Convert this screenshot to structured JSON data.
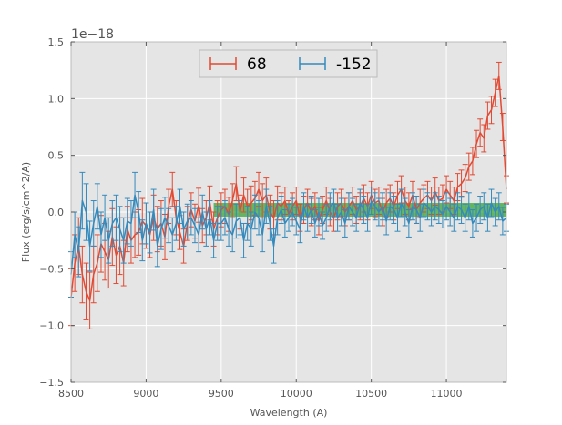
{
  "chart_data": {
    "type": "line",
    "xlabel": "Wavelength (A)",
    "ylabel": "Flux (erg/s/cm^2/A)",
    "y_offset_label": "1e−18",
    "xlim": [
      8500,
      11400
    ],
    "ylim": [
      -1.5,
      1.5
    ],
    "x_ticks": [
      8500,
      9000,
      9500,
      10000,
      10500,
      11000
    ],
    "x_tick_labels": [
      "8500",
      "9000",
      "9500",
      "10000",
      "10500",
      "11000"
    ],
    "y_ticks": [
      -1.5,
      -1.0,
      -0.5,
      0.0,
      0.5,
      1.0,
      1.5
    ],
    "y_tick_labels": [
      "−1.5",
      "−1.0",
      "−0.5",
      "0.0",
      "0.5",
      "1.0",
      "1.5"
    ],
    "grid": true,
    "background": "#e5e5e5",
    "legend_position": "top-center",
    "x": [
      8500,
      8525,
      8550,
      8575,
      8600,
      8625,
      8650,
      8675,
      8700,
      8725,
      8750,
      8775,
      8800,
      8825,
      8850,
      8875,
      8900,
      8925,
      8950,
      8975,
      9000,
      9025,
      9050,
      9075,
      9100,
      9125,
      9150,
      9175,
      9200,
      9225,
      9250,
      9275,
      9300,
      9325,
      9350,
      9375,
      9400,
      9425,
      9450,
      9475,
      9500,
      9525,
      9550,
      9575,
      9600,
      9625,
      9650,
      9675,
      9700,
      9725,
      9750,
      9775,
      9800,
      9825,
      9850,
      9875,
      9900,
      9925,
      9950,
      9975,
      10000,
      10025,
      10050,
      10075,
      10100,
      10125,
      10150,
      10175,
      10200,
      10225,
      10250,
      10275,
      10300,
      10325,
      10350,
      10375,
      10400,
      10425,
      10450,
      10475,
      10500,
      10525,
      10550,
      10575,
      10600,
      10625,
      10650,
      10675,
      10700,
      10725,
      10750,
      10775,
      10800,
      10825,
      10850,
      10875,
      10900,
      10925,
      10950,
      10975,
      11000,
      11025,
      11050,
      11075,
      11100,
      11125,
      11150,
      11175,
      11200,
      11225,
      11250,
      11275,
      11300,
      11325,
      11350,
      11375,
      11400
    ],
    "series": [
      {
        "name": "68",
        "color": "#e24a33",
        "values": [
          -0.75,
          -0.45,
          -0.3,
          -0.55,
          -0.7,
          -0.78,
          -0.55,
          -0.45,
          -0.28,
          -0.35,
          -0.42,
          -0.22,
          -0.38,
          -0.3,
          -0.45,
          -0.15,
          -0.25,
          -0.2,
          -0.18,
          -0.08,
          -0.12,
          -0.2,
          -0.05,
          -0.15,
          -0.1,
          -0.22,
          0.05,
          0.2,
          -0.05,
          -0.18,
          -0.3,
          -0.1,
          0.02,
          -0.08,
          0.06,
          -0.12,
          -0.05,
          0.08,
          -0.15,
          -0.05,
          0.02,
          0.05,
          -0.02,
          0.1,
          0.25,
          0.0,
          0.15,
          0.05,
          0.08,
          0.12,
          0.2,
          0.1,
          0.15,
          0.0,
          -0.05,
          0.08,
          0.05,
          0.1,
          -0.02,
          0.05,
          0.1,
          -0.05,
          0.02,
          0.08,
          0.0,
          0.05,
          -0.08,
          0.02,
          0.1,
          0.0,
          -0.05,
          0.05,
          0.08,
          0.0,
          0.05,
          0.1,
          0.02,
          0.05,
          0.12,
          0.05,
          0.15,
          0.08,
          0.1,
          0.0,
          0.08,
          0.12,
          0.05,
          0.15,
          0.2,
          0.1,
          0.05,
          0.15,
          0.02,
          0.08,
          0.12,
          0.15,
          0.1,
          0.18,
          0.1,
          0.12,
          0.2,
          0.15,
          0.1,
          0.22,
          0.25,
          0.3,
          0.4,
          0.45,
          0.6,
          0.7,
          0.65,
          0.85,
          0.9,
          1.05,
          1.2,
          0.75,
          0.2
        ],
        "errors": [
          0.25,
          0.25,
          0.25,
          0.25,
          0.25,
          0.25,
          0.25,
          0.25,
          0.25,
          0.25,
          0.25,
          0.25,
          0.25,
          0.25,
          0.2,
          0.2,
          0.2,
          0.2,
          0.2,
          0.2,
          0.2,
          0.2,
          0.2,
          0.2,
          0.2,
          0.2,
          0.15,
          0.15,
          0.15,
          0.15,
          0.15,
          0.15,
          0.15,
          0.15,
          0.15,
          0.15,
          0.15,
          0.15,
          0.15,
          0.15,
          0.15,
          0.15,
          0.15,
          0.15,
          0.15,
          0.15,
          0.15,
          0.15,
          0.15,
          0.15,
          0.15,
          0.15,
          0.15,
          0.15,
          0.15,
          0.15,
          0.12,
          0.12,
          0.12,
          0.12,
          0.12,
          0.12,
          0.12,
          0.12,
          0.12,
          0.12,
          0.12,
          0.12,
          0.12,
          0.12,
          0.12,
          0.12,
          0.12,
          0.12,
          0.12,
          0.12,
          0.12,
          0.12,
          0.12,
          0.12,
          0.12,
          0.12,
          0.12,
          0.12,
          0.12,
          0.12,
          0.12,
          0.12,
          0.12,
          0.12,
          0.12,
          0.12,
          0.12,
          0.12,
          0.12,
          0.12,
          0.12,
          0.12,
          0.12,
          0.12,
          0.12,
          0.12,
          0.12,
          0.12,
          0.12,
          0.12,
          0.12,
          0.12,
          0.12,
          0.12,
          0.12,
          0.12,
          0.12,
          0.12,
          0.12,
          0.12,
          0.12
        ]
      },
      {
        "name": "-152",
        "color": "#348abd",
        "values": [
          -0.55,
          -0.2,
          -0.35,
          0.1,
          0.0,
          -0.3,
          -0.1,
          0.05,
          -0.2,
          -0.05,
          -0.25,
          -0.1,
          -0.05,
          -0.15,
          -0.25,
          -0.08,
          -0.1,
          0.15,
          0.0,
          -0.25,
          -0.1,
          -0.18,
          0.02,
          -0.3,
          -0.15,
          -0.05,
          -0.12,
          -0.2,
          -0.1,
          0.05,
          -0.15,
          -0.08,
          -0.05,
          -0.12,
          -0.2,
          0.0,
          -0.15,
          -0.05,
          -0.25,
          -0.1,
          -0.1,
          -0.05,
          -0.15,
          -0.2,
          -0.08,
          -0.05,
          -0.25,
          -0.1,
          -0.15,
          0.0,
          -0.05,
          -0.2,
          0.05,
          -0.1,
          -0.3,
          -0.05,
          0.02,
          -0.1,
          -0.05,
          0.0,
          -0.08,
          -0.15,
          0.05,
          -0.05,
          0.02,
          -0.1,
          0.0,
          -0.12,
          -0.05,
          0.05,
          0.08,
          -0.05,
          0.0,
          -0.1,
          0.05,
          0.0,
          -0.05,
          0.08,
          0.02,
          -0.05,
          0.1,
          0.05,
          0.0,
          0.05,
          -0.08,
          0.05,
          0.02,
          -0.05,
          0.08,
          0.0,
          -0.1,
          0.05,
          0.02,
          -0.05,
          0.08,
          0.05,
          0.0,
          0.05,
          0.02,
          -0.02,
          0.05,
          0.0,
          -0.05,
          0.05,
          0.02,
          -0.05,
          0.05,
          -0.1,
          -0.05,
          0.02,
          0.05,
          -0.05,
          0.08,
          0.0,
          0.05,
          -0.08,
          -0.05
        ],
        "errors": [
          0.2,
          0.2,
          0.22,
          0.25,
          0.25,
          0.22,
          0.2,
          0.2,
          0.2,
          0.2,
          0.2,
          0.2,
          0.2,
          0.2,
          0.2,
          0.2,
          0.2,
          0.2,
          0.18,
          0.18,
          0.18,
          0.18,
          0.18,
          0.18,
          0.18,
          0.18,
          0.15,
          0.15,
          0.15,
          0.15,
          0.15,
          0.15,
          0.15,
          0.15,
          0.15,
          0.15,
          0.15,
          0.15,
          0.15,
          0.15,
          0.15,
          0.15,
          0.15,
          0.15,
          0.15,
          0.15,
          0.15,
          0.15,
          0.15,
          0.15,
          0.15,
          0.15,
          0.15,
          0.15,
          0.15,
          0.15,
          0.12,
          0.12,
          0.12,
          0.12,
          0.12,
          0.12,
          0.12,
          0.12,
          0.12,
          0.12,
          0.12,
          0.12,
          0.12,
          0.12,
          0.12,
          0.12,
          0.12,
          0.12,
          0.12,
          0.12,
          0.12,
          0.12,
          0.12,
          0.12,
          0.12,
          0.12,
          0.12,
          0.12,
          0.12,
          0.12,
          0.12,
          0.12,
          0.12,
          0.12,
          0.12,
          0.12,
          0.12,
          0.12,
          0.12,
          0.12,
          0.12,
          0.12,
          0.12,
          0.12,
          0.12,
          0.12,
          0.12,
          0.12,
          0.12,
          0.12,
          0.12,
          0.12,
          0.12,
          0.12,
          0.12,
          0.12,
          0.12,
          0.12,
          0.12,
          0.12,
          0.12
        ]
      }
    ],
    "band": {
      "color": "#2ca02c",
      "x_start": 9450,
      "x_end": 11400,
      "y_low": -0.04,
      "y_high": 0.08
    }
  }
}
